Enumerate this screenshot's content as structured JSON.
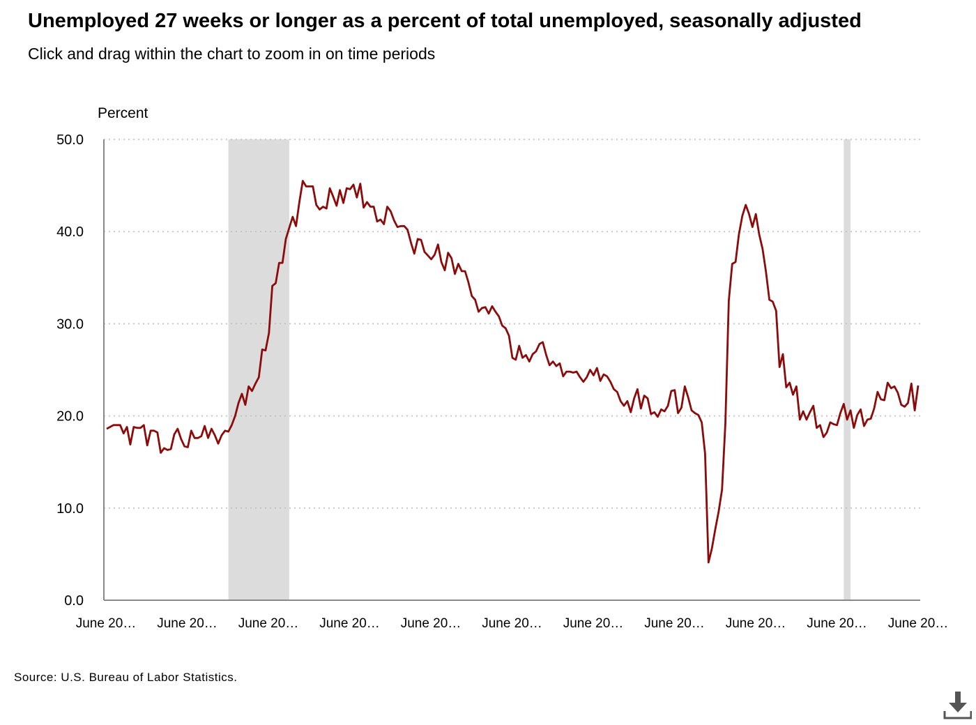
{
  "header": {
    "title": "Unemployed 27 weeks or longer as a percent of total unemployed, seasonally adjusted",
    "subtitle": "Click and drag within the chart to zoom in on time periods"
  },
  "footer": {
    "source": "Source: U.S. Bureau of Labor Statistics."
  },
  "download_icon": "download-icon",
  "colors": {
    "line": "#8b0a0a",
    "recession_shade": "#dcdcdc",
    "gridline": "#bbbbbb",
    "axis": "#888888"
  },
  "chart_data": {
    "type": "line",
    "ylabel": "Percent",
    "ylim": [
      0,
      50
    ],
    "yticks": [
      "0.0",
      "10.0",
      "20.0",
      "30.0",
      "40.0",
      "50.0"
    ],
    "xtick_labels": [
      "June 20…",
      "June 20…",
      "June 20…",
      "June 20…",
      "June 20…",
      "June 20…",
      "June 20…",
      "June 20…",
      "June 20…",
      "June 20…",
      "June 20…"
    ],
    "grid": "horizontal dotted",
    "recessions": [
      {
        "start_index": 36,
        "end_index": 54
      },
      {
        "start_index": 218,
        "end_index": 220
      }
    ],
    "series": [
      {
        "values": [
          18.6,
          18.8,
          19,
          19,
          19,
          18.1,
          18.8,
          16.9,
          18.8,
          18.7,
          18.7,
          19,
          16.8,
          18.4,
          18.4,
          18.2,
          16,
          16.5,
          16.3,
          16.4,
          18,
          18.6,
          17.5,
          16.7,
          16.6,
          18.4,
          17.6,
          17.6,
          17.8,
          18.9,
          17.6,
          18.6,
          17.9,
          17,
          17.9,
          18.4,
          18.3,
          19,
          20,
          21.4,
          22.4,
          21.2,
          23.2,
          22.7,
          23.5,
          24.2,
          27.2,
          27.1,
          29,
          34.1,
          34.4,
          36.6,
          36.6,
          39.2,
          40.4,
          41.6,
          40.6,
          43.2,
          45.5,
          44.9,
          44.9,
          44.9,
          42.9,
          42.4,
          42.7,
          42.5,
          44.7,
          43.8,
          42.8,
          44.5,
          43.1,
          44.7,
          44.6,
          45.1,
          43.7,
          45.2,
          42.6,
          43.2,
          42.7,
          42.7,
          41.1,
          41.3,
          40.8,
          42.7,
          42.2,
          41.2,
          40.5,
          40.6,
          40.6,
          40.2,
          38.8,
          37.6,
          39.2,
          39.1,
          37.8,
          37.4,
          37,
          37.5,
          38.6,
          36.7,
          35.8,
          37.7,
          37.1,
          35.4,
          36.5,
          35.7,
          35.7,
          34.5,
          33,
          32.6,
          31.3,
          31.7,
          31.8,
          31.1,
          31.9,
          31.3,
          30.8,
          29.8,
          29.5,
          28.7,
          26.3,
          26.1,
          27.6,
          26.3,
          26.6,
          25.9,
          26.7,
          27,
          27.8,
          28,
          26.6,
          25.5,
          25.9,
          25.4,
          25.7,
          24.3,
          24.8,
          24.8,
          24.7,
          24.8,
          24.2,
          23.7,
          24.2,
          25,
          24.4,
          25.2,
          23.8,
          24.5,
          24.3,
          23.7,
          22.9,
          22.6,
          21.6,
          21.1,
          21.6,
          20.4,
          21.9,
          22.9,
          20.8,
          22.2,
          21.9,
          20.2,
          20.4,
          19.9,
          20.7,
          20.5,
          21.1,
          22.7,
          22.8,
          20.3,
          20.9,
          23.2,
          22,
          20.6,
          20.3,
          20.1,
          19.3,
          15.9,
          4.1,
          5.6,
          7.7,
          9.6,
          12,
          19.2,
          32.5,
          36.5,
          36.7,
          39.7,
          41.7,
          42.9,
          41.9,
          40.5,
          41.9,
          39.7,
          38.1,
          35.6,
          32.6,
          32.4,
          31.4,
          25.3,
          26.7,
          23.1,
          23.6,
          22.3,
          23.2,
          19.6,
          20.5,
          19.6,
          20.4,
          21.1,
          18.7,
          19,
          17.7,
          18.2,
          19.3,
          19.1,
          19,
          20.3,
          21.3,
          19.6,
          20.6,
          18.7,
          20.1,
          20.7,
          18.9,
          19.6,
          19.7,
          20.8,
          22.6,
          21.8,
          21.7,
          23.6,
          23,
          23.2,
          22.5,
          21.2,
          21,
          21.4,
          23.5,
          20.6,
          23.3
        ]
      }
    ]
  }
}
